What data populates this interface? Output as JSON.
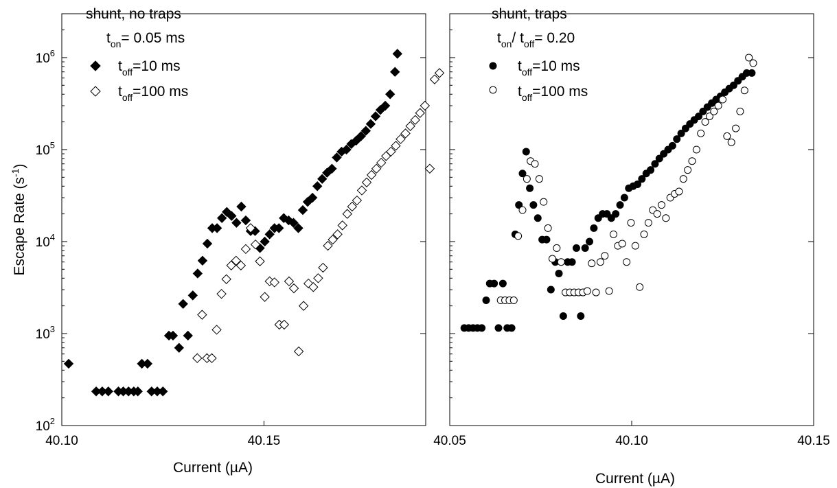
{
  "chart_data": [
    {
      "type": "scatter",
      "ylabel": "Escape Rate (s-1)",
      "xlabel": "Current (µA)",
      "xlim": [
        40.1,
        40.19
      ],
      "ylim": [
        100,
        3000000
      ],
      "yscale": "log",
      "xticks": [
        40.1,
        40.15
      ],
      "xtick_labels": [
        "40.10",
        "40.15"
      ],
      "yticks": [
        100,
        1000,
        10000,
        100000,
        1000000
      ],
      "ytick_exponents": [
        "2",
        "3",
        "4",
        "5",
        "6"
      ],
      "ytick_base": "10",
      "grid": false,
      "legend_position": "top-left",
      "legend_title": "shunt, no traps",
      "legend_param": {
        "main": "t",
        "sub": "on",
        "rest": "= 0.05 ms"
      },
      "series": [
        {
          "legend_main": "t",
          "legend_sub": "off",
          "legend_rest": "=10 ms",
          "marker": "diamond-filled",
          "points": [
            [
              40.1017,
              470
            ],
            [
              40.1085,
              235
            ],
            [
              40.11,
              235
            ],
            [
              40.1115,
              235
            ],
            [
              40.114,
              235
            ],
            [
              40.1152,
              235
            ],
            [
              40.1165,
              235
            ],
            [
              40.1178,
              235
            ],
            [
              40.1188,
              235
            ],
            [
              40.1198,
              470
            ],
            [
              40.1212,
              470
            ],
            [
              40.1222,
              235
            ],
            [
              40.1236,
              235
            ],
            [
              40.125,
              235
            ],
            [
              40.1265,
              950
            ],
            [
              40.1275,
              950
            ],
            [
              40.129,
              700
            ],
            [
              40.13,
              2100
            ],
            [
              40.1312,
              950
            ],
            [
              40.1324,
              2600
            ],
            [
              40.1336,
              4500
            ],
            [
              40.1348,
              6200
            ],
            [
              40.136,
              9500
            ],
            [
              40.1372,
              14000
            ],
            [
              40.1384,
              14000
            ],
            [
              40.1396,
              18000
            ],
            [
              40.1408,
              21000
            ],
            [
              40.142,
              19000
            ],
            [
              40.1432,
              16000
            ],
            [
              40.1444,
              24000
            ],
            [
              40.1455,
              17000
            ],
            [
              40.1467,
              13000
            ],
            [
              40.1478,
              13000
            ],
            [
              40.149,
              8500
            ],
            [
              40.1502,
              10000
            ],
            [
              40.1514,
              12000
            ],
            [
              40.1526,
              14000
            ],
            [
              40.1537,
              14000
            ],
            [
              40.1549,
              18000
            ],
            [
              40.1561,
              17000
            ],
            [
              40.1573,
              16000
            ],
            [
              40.1585,
              14000
            ],
            [
              40.1596,
              22000
            ],
            [
              40.1608,
              27000
            ],
            [
              40.162,
              30000
            ],
            [
              40.1632,
              40000
            ],
            [
              40.1644,
              48000
            ],
            [
              40.1656,
              56000
            ],
            [
              40.1668,
              62000
            ],
            [
              40.168,
              82000
            ],
            [
              40.1692,
              95000
            ],
            [
              40.1704,
              100000
            ],
            [
              40.1716,
              115000
            ],
            [
              40.1728,
              125000
            ],
            [
              40.174,
              140000
            ],
            [
              40.1752,
              160000
            ],
            [
              40.1764,
              190000
            ],
            [
              40.1776,
              230000
            ],
            [
              40.1788,
              270000
            ],
            [
              40.18,
              300000
            ],
            [
              40.1812,
              400000
            ],
            [
              40.1824,
              700000
            ],
            [
              40.183,
              1100000
            ]
          ]
        },
        {
          "legend_main": "t",
          "legend_sub": "off",
          "legend_rest": "=100 ms",
          "marker": "diamond-open",
          "points": [
            [
              40.1335,
              540
            ],
            [
              40.1347,
              1600
            ],
            [
              40.1359,
              540
            ],
            [
              40.1371,
              540
            ],
            [
              40.1383,
              1100
            ],
            [
              40.1395,
              2700
            ],
            [
              40.1407,
              3900
            ],
            [
              40.1419,
              5500
            ],
            [
              40.1431,
              6200
            ],
            [
              40.1443,
              5500
            ],
            [
              40.1455,
              8300
            ],
            [
              40.1467,
              14000
            ],
            [
              40.1479,
              9300
            ],
            [
              40.149,
              6100
            ],
            [
              40.1502,
              2500
            ],
            [
              40.1514,
              3700
            ],
            [
              40.1526,
              3600
            ],
            [
              40.1538,
              1250
            ],
            [
              40.155,
              1250
            ],
            [
              40.1562,
              3700
            ],
            [
              40.1574,
              3100
            ],
            [
              40.1586,
              640
            ],
            [
              40.1598,
              2000
            ],
            [
              40.161,
              3500
            ],
            [
              40.1622,
              3200
            ],
            [
              40.1634,
              4000
            ],
            [
              40.1646,
              5200
            ],
            [
              40.1658,
              9000
            ],
            [
              40.167,
              10500
            ],
            [
              40.1682,
              12000
            ],
            [
              40.1694,
              15000
            ],
            [
              40.1706,
              20000
            ],
            [
              40.1718,
              24000
            ],
            [
              40.173,
              28000
            ],
            [
              40.1742,
              36000
            ],
            [
              40.1754,
              44000
            ],
            [
              40.1766,
              53000
            ],
            [
              40.1778,
              62000
            ],
            [
              40.179,
              72000
            ],
            [
              40.1802,
              85000
            ],
            [
              40.1814,
              95000
            ],
            [
              40.1826,
              110000
            ],
            [
              40.1838,
              130000
            ],
            [
              40.185,
              150000
            ],
            [
              40.1862,
              180000
            ],
            [
              40.1874,
              210000
            ],
            [
              40.1886,
              250000
            ],
            [
              40.1898,
              300000
            ],
            [
              40.191,
              62000
            ],
            [
              40.1922,
              580000
            ],
            [
              40.1934,
              680000
            ]
          ]
        }
      ]
    },
    {
      "type": "scatter",
      "ylabel": "",
      "xlabel": "Current (µA)",
      "xlim": [
        40.05,
        40.15
      ],
      "ylim": [
        100,
        3000000
      ],
      "yscale": "log",
      "xticks": [
        40.05,
        40.1,
        40.15
      ],
      "xtick_labels": [
        "40.05",
        "40.10",
        "40.15"
      ],
      "yticks": [
        100,
        1000,
        10000,
        100000,
        1000000
      ],
      "grid": false,
      "legend_position": "top-left",
      "legend_title": "shunt, traps",
      "legend_param": {
        "main1": "t",
        "sub1": "on",
        "mid": "/ t",
        "sub2": "off",
        "rest": "= 0.20"
      },
      "series": [
        {
          "legend_main": "t",
          "legend_sub": "off",
          "legend_rest": "=10 ms",
          "marker": "circle-filled",
          "points": [
            [
              40.054,
              1150
            ],
            [
              40.0552,
              1150
            ],
            [
              40.0564,
              1150
            ],
            [
              40.0576,
              1150
            ],
            [
              40.0588,
              1150
            ],
            [
              40.06,
              2300
            ],
            [
              40.061,
              3500
            ],
            [
              40.0622,
              3500
            ],
            [
              40.0634,
              1150
            ],
            [
              40.0646,
              3500
            ],
            [
              40.0658,
              1150
            ],
            [
              40.067,
              1150
            ],
            [
              40.068,
              12000
            ],
            [
              40.069,
              25000
            ],
            [
              40.07,
              55000
            ],
            [
              40.071,
              95000
            ],
            [
              40.072,
              38000
            ],
            [
              40.073,
              25000
            ],
            [
              40.0742,
              18000
            ],
            [
              40.0754,
              10500
            ],
            [
              40.0766,
              10500
            ],
            [
              40.0778,
              3000
            ],
            [
              40.079,
              6000
            ],
            [
              40.08,
              4500
            ],
            [
              40.0812,
              1550
            ],
            [
              40.0824,
              6000
            ],
            [
              40.0836,
              6000
            ],
            [
              40.0848,
              8500
            ],
            [
              40.086,
              1550
            ],
            [
              40.0872,
              8500
            ],
            [
              40.0884,
              10000
            ],
            [
              40.0896,
              14000
            ],
            [
              40.0908,
              18000
            ],
            [
              40.092,
              20000
            ],
            [
              40.0932,
              20000
            ],
            [
              40.0944,
              18000
            ],
            [
              40.0956,
              20000
            ],
            [
              40.0968,
              25000
            ],
            [
              40.098,
              30000
            ],
            [
              40.0992,
              38000
            ],
            [
              40.1004,
              40000
            ],
            [
              40.1016,
              42000
            ],
            [
              40.1028,
              48000
            ],
            [
              40.104,
              55000
            ],
            [
              40.1052,
              60000
            ],
            [
              40.1064,
              70000
            ],
            [
              40.1076,
              80000
            ],
            [
              40.1088,
              90000
            ],
            [
              40.11,
              100000
            ],
            [
              40.1112,
              110000
            ],
            [
              40.1124,
              130000
            ],
            [
              40.1136,
              150000
            ],
            [
              40.1148,
              170000
            ],
            [
              40.116,
              190000
            ],
            [
              40.1172,
              210000
            ],
            [
              40.1184,
              230000
            ],
            [
              40.1196,
              260000
            ],
            [
              40.1208,
              290000
            ],
            [
              40.122,
              320000
            ],
            [
              40.1232,
              350000
            ],
            [
              40.1244,
              380000
            ],
            [
              40.1256,
              420000
            ],
            [
              40.1268,
              460000
            ],
            [
              40.128,
              500000
            ],
            [
              40.1292,
              560000
            ],
            [
              40.1304,
              620000
            ],
            [
              40.1316,
              680000
            ],
            [
              40.133,
              680000
            ]
          ]
        },
        {
          "legend_main": "t",
          "legend_sub": "off",
          "legend_rest": "=100 ms",
          "marker": "circle-open",
          "points": [
            [
              40.064,
              2300
            ],
            [
              40.0652,
              2300
            ],
            [
              40.0664,
              2300
            ],
            [
              40.0676,
              2300
            ],
            [
              40.0688,
              11500
            ],
            [
              40.07,
              22000
            ],
            [
              40.0712,
              48000
            ],
            [
              40.0722,
              75000
            ],
            [
              40.0734,
              70000
            ],
            [
              40.0746,
              48000
            ],
            [
              40.0758,
              27000
            ],
            [
              40.077,
              14000
            ],
            [
              40.0782,
              6500
            ],
            [
              40.0794,
              8500
            ],
            [
              40.0806,
              6000
            ],
            [
              40.0818,
              2800
            ],
            [
              40.083,
              2800
            ],
            [
              40.0842,
              2800
            ],
            [
              40.0854,
              2800
            ],
            [
              40.0866,
              2800
            ],
            [
              40.0878,
              2900
            ],
            [
              40.089,
              5800
            ],
            [
              40.0902,
              2800
            ],
            [
              40.0914,
              6000
            ],
            [
              40.0926,
              7000
            ],
            [
              40.0938,
              2900
            ],
            [
              40.095,
              12000
            ],
            [
              40.0962,
              9000
            ],
            [
              40.0974,
              9500
            ],
            [
              40.0986,
              6000
            ],
            [
              40.0998,
              16000
            ],
            [
              40.101,
              9000
            ],
            [
              40.1022,
              3200
            ],
            [
              40.1034,
              12000
            ],
            [
              40.1046,
              16000
            ],
            [
              40.1058,
              22000
            ],
            [
              40.107,
              20000
            ],
            [
              40.1082,
              25000
            ],
            [
              40.1094,
              18000
            ],
            [
              40.1106,
              30000
            ],
            [
              40.1118,
              33000
            ],
            [
              40.113,
              35000
            ],
            [
              40.1142,
              48000
            ],
            [
              40.1154,
              60000
            ],
            [
              40.1166,
              75000
            ],
            [
              40.1178,
              100000
            ],
            [
              40.119,
              150000
            ],
            [
              40.1202,
              200000
            ],
            [
              40.1214,
              230000
            ],
            [
              40.1226,
              260000
            ],
            [
              40.1238,
              300000
            ],
            [
              40.125,
              350000
            ],
            [
              40.1262,
              140000
            ],
            [
              40.1274,
              120000
            ],
            [
              40.1286,
              170000
            ],
            [
              40.1298,
              260000
            ],
            [
              40.131,
              440000
            ],
            [
              40.1322,
              1000000
            ],
            [
              40.1334,
              870000
            ]
          ]
        }
      ]
    }
  ]
}
